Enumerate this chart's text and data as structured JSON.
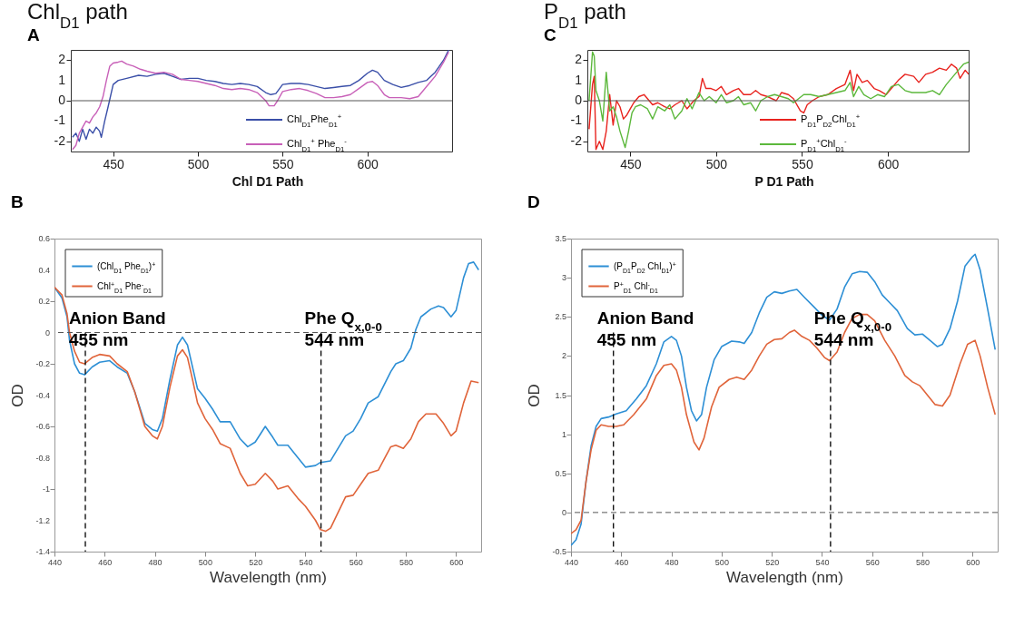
{
  "chart_data": [
    {
      "type": "line",
      "title": "Chl$_{D1}$ path",
      "annotations": [
        "A"
      ],
      "xlim": [
        425,
        650
      ],
      "xticks": [
        450,
        500,
        550,
        600
      ],
      "ylim": [
        -2.5,
        2.5
      ],
      "yticks": [
        -2,
        -1,
        0,
        1,
        2
      ],
      "legend": "bottom right",
      "ref_lines": [
        {
          "axis": "y",
          "value": 0,
          "color": "#555555",
          "line_style": "solid"
        }
      ],
      "series": [
        {
          "name": "Chl$_{D1}$Phe$_{D1}$$^{+}$",
          "color": "#3a4fa8",
          "x": [
            426,
            428,
            430,
            432,
            434,
            436,
            438,
            440,
            442,
            443,
            445,
            447,
            450,
            453,
            458,
            465,
            470,
            475,
            480,
            485,
            490,
            495,
            500,
            505,
            510,
            515,
            520,
            525,
            530,
            535,
            540,
            543,
            546,
            550,
            555,
            560,
            565,
            570,
            575,
            580,
            585,
            590,
            595,
            600,
            603,
            606,
            610,
            615,
            620,
            625,
            630,
            635,
            640,
            645,
            648
          ],
          "values": [
            -1.8,
            -1.6,
            -2.0,
            -1.4,
            -1.9,
            -1.4,
            -1.6,
            -1.3,
            -1.5,
            -1.8,
            -1.0,
            -0.3,
            0.8,
            1.0,
            1.1,
            1.25,
            1.2,
            1.3,
            1.35,
            1.2,
            1.05,
            1.1,
            1.1,
            1.0,
            0.95,
            0.85,
            0.8,
            0.85,
            0.8,
            0.7,
            0.4,
            0.3,
            0.35,
            0.8,
            0.85,
            0.85,
            0.8,
            0.7,
            0.6,
            0.65,
            0.7,
            0.75,
            1.0,
            1.35,
            1.5,
            1.4,
            1.0,
            0.8,
            0.65,
            0.75,
            0.9,
            1.0,
            1.4,
            2.0,
            2.5
          ]
        },
        {
          "name": "Chl$_{D1}$$^{+}$ Phe$_{D1}$$^{-}$",
          "color": "#c860b8",
          "x": [
            426,
            428,
            430,
            432,
            434,
            436,
            438,
            440,
            442,
            444,
            446,
            448,
            450,
            453,
            455,
            458,
            462,
            466,
            470,
            475,
            480,
            485,
            490,
            495,
            500,
            505,
            510,
            515,
            520,
            525,
            530,
            535,
            540,
            542,
            545,
            547,
            550,
            555,
            560,
            565,
            570,
            575,
            580,
            585,
            590,
            595,
            600,
            603,
            606,
            610,
            613,
            620,
            625,
            630,
            635,
            640,
            645,
            648
          ],
          "values": [
            -2.4,
            -2.2,
            -1.6,
            -1.3,
            -1.0,
            -1.1,
            -0.8,
            -0.6,
            -0.3,
            0.2,
            1.0,
            1.7,
            1.85,
            1.9,
            1.95,
            1.8,
            1.7,
            1.55,
            1.45,
            1.35,
            1.4,
            1.3,
            1.05,
            1.0,
            0.95,
            0.85,
            0.75,
            0.6,
            0.55,
            0.6,
            0.55,
            0.4,
            0.0,
            -0.25,
            -0.25,
            0.0,
            0.45,
            0.55,
            0.6,
            0.5,
            0.35,
            0.15,
            0.15,
            0.2,
            0.3,
            0.6,
            0.9,
            0.95,
            0.75,
            0.3,
            0.15,
            0.15,
            0.1,
            0.2,
            0.7,
            1.2,
            1.9,
            2.4
          ]
        }
      ]
    },
    {
      "type": "line",
      "title": "P$_{D1}$ path",
      "annotations": [
        "C"
      ],
      "xlim": [
        425,
        647
      ],
      "xticks": [
        450,
        500,
        550,
        600
      ],
      "ylim": [
        -2.5,
        2.5
      ],
      "yticks": [
        -2,
        -1,
        0,
        1,
        2
      ],
      "legend": "bottom right",
      "ref_lines": [
        {
          "axis": "y",
          "value": 0,
          "color": "#555555",
          "line_style": "solid"
        }
      ],
      "series": [
        {
          "name": "P$_{D1}$P$_{D2}$Chl$_{D1}$$^{+}$",
          "color": "#e8231e",
          "x": [
            426,
            428,
            429,
            430,
            432,
            434,
            436,
            438,
            440,
            442,
            444,
            446,
            448,
            450,
            452,
            455,
            458,
            460,
            463,
            466,
            470,
            473,
            476,
            480,
            483,
            487,
            490,
            492,
            494,
            497,
            500,
            503,
            506,
            510,
            513,
            516,
            520,
            523,
            526,
            530,
            535,
            538,
            542,
            545,
            549,
            551,
            553,
            556,
            560,
            565,
            570,
            575,
            578,
            580,
            582,
            585,
            588,
            592,
            595,
            599,
            602,
            606,
            610,
            615,
            618,
            622,
            626,
            630,
            634,
            637,
            640,
            642,
            645,
            647
          ],
          "values": [
            -1.4,
            0.8,
            1.2,
            -2.4,
            -2.0,
            -2.4,
            -1.5,
            0.3,
            -1.2,
            0.0,
            -0.3,
            -0.9,
            -0.7,
            -0.4,
            -0.1,
            0.2,
            0.3,
            0.1,
            -0.2,
            -0.1,
            -0.3,
            -0.4,
            -0.2,
            0.0,
            -0.4,
            0.0,
            0.2,
            1.1,
            0.6,
            0.6,
            0.5,
            0.7,
            0.3,
            0.5,
            0.6,
            0.3,
            0.3,
            0.5,
            0.3,
            0.2,
            0.0,
            0.4,
            0.3,
            0.1,
            -0.5,
            -0.6,
            -0.2,
            0.0,
            0.2,
            0.3,
            0.6,
            0.8,
            1.5,
            0.5,
            1.3,
            0.9,
            1.0,
            0.6,
            0.5,
            0.3,
            0.6,
            1.0,
            1.3,
            1.2,
            0.9,
            1.3,
            1.4,
            1.6,
            1.5,
            1.8,
            1.6,
            1.1,
            1.5,
            1.3
          ]
        },
        {
          "name": "P$_{D1}$$^{+}$Chl$_{D1}$$^{-}$",
          "color": "#5cb83c",
          "x": [
            426,
            428,
            429,
            430,
            432,
            434,
            436,
            438,
            440,
            442,
            444,
            447,
            449,
            451,
            453,
            456,
            460,
            463,
            466,
            470,
            473,
            476,
            480,
            483,
            486,
            490,
            493,
            496,
            500,
            503,
            506,
            510,
            513,
            516,
            520,
            523,
            526,
            530,
            534,
            538,
            542,
            545,
            548,
            551,
            555,
            560,
            565,
            570,
            575,
            578,
            580,
            583,
            586,
            590,
            594,
            598,
            602,
            606,
            610,
            614,
            618,
            622,
            626,
            630,
            634,
            638,
            641,
            644,
            647
          ],
          "values": [
            0.0,
            2.4,
            2.2,
            0.5,
            0.0,
            -1.0,
            1.4,
            -0.5,
            -0.3,
            -0.8,
            -1.5,
            -2.3,
            -1.5,
            -0.6,
            -0.3,
            -0.2,
            -0.4,
            -0.9,
            -0.3,
            -0.5,
            -0.2,
            -0.9,
            -0.5,
            0.1,
            -0.4,
            0.4,
            0.0,
            0.2,
            -0.1,
            0.3,
            -0.1,
            0.0,
            0.2,
            -0.2,
            -0.1,
            -0.5,
            0.0,
            0.2,
            0.3,
            0.2,
            0.1,
            -0.1,
            0.1,
            0.3,
            0.3,
            0.2,
            0.3,
            0.4,
            0.5,
            0.9,
            0.2,
            0.7,
            0.3,
            0.1,
            0.3,
            0.2,
            0.7,
            0.8,
            0.5,
            0.4,
            0.4,
            0.4,
            0.5,
            0.3,
            0.8,
            1.2,
            1.5,
            1.8,
            1.9
          ]
        }
      ]
    },
    {
      "type": "line",
      "title": "Chl D1 Path",
      "xlabel": "Wavelength (nm)",
      "ylabel": "OD",
      "annotations": [
        "B"
      ],
      "xlim": [
        440,
        610
      ],
      "xticks": [
        440,
        460,
        480,
        500,
        520,
        540,
        560,
        580,
        600
      ],
      "ylim": [
        -1.4,
        0.6
      ],
      "yticks": [
        -1.4,
        -1.2,
        -1,
        -0.8,
        -0.6,
        -0.4,
        -0.2,
        0,
        0.2,
        0.4,
        0.6
      ],
      "legend": "top left",
      "ref_lines": [
        {
          "axis": "y",
          "value": 0,
          "color": "#555555",
          "line_style": "dashed"
        },
        {
          "axis": "x",
          "value": 452.3,
          "label": "Anion Band\n455 nm",
          "color": "#000000",
          "line_style": "dashed"
        },
        {
          "axis": "x",
          "value": 546.2,
          "label": "Phe Q$_{x,0-0}$\n544 nm",
          "color": "#000000",
          "line_style": "dashed"
        }
      ],
      "series": [
        {
          "name": "(Chl$_{D1}$ Phe$_{D1}$)$^{+}$",
          "color": "#2d8fd5",
          "x": [
            440,
            443,
            445,
            446,
            448,
            450,
            452,
            455,
            458,
            462,
            465,
            469,
            472,
            476,
            479,
            481,
            483,
            486,
            489,
            491,
            493,
            495,
            497,
            500,
            503,
            506,
            510,
            514,
            517,
            520,
            524,
            527,
            529,
            533,
            537,
            540,
            544,
            546,
            550,
            553,
            556,
            559,
            562,
            565,
            569,
            574,
            576,
            579,
            582,
            584,
            586,
            590,
            593,
            595,
            598,
            600,
            603,
            605,
            607,
            609
          ],
          "values": [
            0.29,
            0.22,
            0.1,
            -0.05,
            -0.2,
            -0.26,
            -0.27,
            -0.22,
            -0.19,
            -0.18,
            -0.22,
            -0.26,
            -0.38,
            -0.58,
            -0.62,
            -0.63,
            -0.55,
            -0.3,
            -0.08,
            -0.03,
            -0.08,
            -0.22,
            -0.36,
            -0.42,
            -0.49,
            -0.57,
            -0.57,
            -0.68,
            -0.73,
            -0.7,
            -0.6,
            -0.67,
            -0.72,
            -0.72,
            -0.8,
            -0.86,
            -0.85,
            -0.83,
            -0.82,
            -0.74,
            -0.66,
            -0.63,
            -0.55,
            -0.45,
            -0.41,
            -0.25,
            -0.2,
            -0.18,
            -0.1,
            0.02,
            0.1,
            0.15,
            0.17,
            0.16,
            0.1,
            0.14,
            0.35,
            0.44,
            0.45,
            0.4
          ]
        },
        {
          "name": "Chl$^{+}$$_{D1}$ Phe$^{-}$$_{D1}$",
          "color": "#e0643a",
          "x": [
            440,
            443,
            445,
            446,
            448,
            450,
            452,
            455,
            458,
            462,
            465,
            469,
            472,
            476,
            479,
            481,
            483,
            486,
            489,
            491,
            493,
            495,
            497,
            500,
            503,
            506,
            510,
            514,
            517,
            520,
            524,
            527,
            529,
            533,
            537,
            540,
            544,
            546,
            548,
            550,
            553,
            556,
            559,
            562,
            565,
            569,
            574,
            576,
            579,
            582,
            585,
            588,
            592,
            595,
            598,
            600,
            603,
            606,
            609
          ],
          "values": [
            0.29,
            0.24,
            0.12,
            0,
            -0.12,
            -0.19,
            -0.2,
            -0.16,
            -0.14,
            -0.15,
            -0.2,
            -0.25,
            -0.38,
            -0.6,
            -0.66,
            -0.68,
            -0.6,
            -0.35,
            -0.15,
            -0.11,
            -0.16,
            -0.3,
            -0.45,
            -0.55,
            -0.62,
            -0.71,
            -0.74,
            -0.9,
            -0.98,
            -0.97,
            -0.9,
            -0.95,
            -1.0,
            -0.98,
            -1.06,
            -1.11,
            -1.2,
            -1.26,
            -1.27,
            -1.25,
            -1.15,
            -1.05,
            -1.04,
            -0.97,
            -0.9,
            -0.88,
            -0.73,
            -0.72,
            -0.74,
            -0.68,
            -0.57,
            -0.52,
            -0.52,
            -0.58,
            -0.66,
            -0.63,
            -0.45,
            -0.31,
            -0.32
          ]
        }
      ]
    },
    {
      "type": "line",
      "title": "P D1 Path",
      "xlabel": "Wavelength (nm)",
      "ylabel": "OD",
      "annotations": [
        "D"
      ],
      "xlim": [
        440,
        610
      ],
      "xticks": [
        440,
        460,
        480,
        500,
        520,
        540,
        560,
        580,
        600
      ],
      "ylim": [
        -0.5,
        3.5
      ],
      "yticks": [
        -0.5,
        0,
        0.5,
        1,
        1.5,
        2,
        2.5,
        3,
        3.5
      ],
      "legend": "top left",
      "ref_lines": [
        {
          "axis": "y",
          "value": 0,
          "color": "#555555",
          "line_style": "dashed"
        },
        {
          "axis": "x",
          "value": 456.9,
          "label": "Anion Band\n455 nm",
          "color": "#000000",
          "line_style": "dashed"
        },
        {
          "axis": "x",
          "value": 543.4,
          "label": "Phe Q$_{x,0-0}$\n544 nm",
          "color": "#000000",
          "line_style": "dashed"
        }
      ],
      "series": [
        {
          "name": "(P$_{D1}$P$_{D2}$ Chl$_{D1}$)$^{+}$",
          "color": "#2d8fd5",
          "x": [
            440,
            442,
            444,
            446,
            448,
            450,
            452,
            455,
            458,
            462,
            466,
            470,
            474,
            477,
            480,
            482,
            484,
            486,
            488,
            490,
            492,
            494,
            497,
            500,
            504,
            507,
            509,
            512,
            515,
            518,
            521,
            524,
            527,
            530,
            533,
            537,
            540,
            543,
            546,
            549,
            552,
            555,
            558,
            561,
            564,
            567,
            570,
            574,
            577,
            580,
            583,
            586,
            588,
            591,
            594,
            597,
            600,
            601,
            603,
            606,
            609
          ],
          "values": [
            -0.42,
            -0.35,
            -0.15,
            0.4,
            0.85,
            1.1,
            1.2,
            1.22,
            1.26,
            1.3,
            1.45,
            1.62,
            1.9,
            2.18,
            2.25,
            2.2,
            2.0,
            1.6,
            1.3,
            1.17,
            1.25,
            1.6,
            1.95,
            2.12,
            2.19,
            2.18,
            2.16,
            2.3,
            2.55,
            2.75,
            2.82,
            2.8,
            2.83,
            2.85,
            2.75,
            2.62,
            2.52,
            2.46,
            2.6,
            2.88,
            3.05,
            3.08,
            3.07,
            2.95,
            2.78,
            2.68,
            2.58,
            2.35,
            2.27,
            2.28,
            2.2,
            2.12,
            2.15,
            2.35,
            2.7,
            3.15,
            3.27,
            3.3,
            3.1,
            2.6,
            2.08
          ]
        },
        {
          "name": "P$^{+}$$_{D1}$ Chl$^{-}$$_{D1}$",
          "color": "#e0643a",
          "x": [
            440,
            442,
            444,
            446,
            448,
            450,
            452,
            455,
            458,
            461,
            465,
            470,
            474,
            477,
            480,
            482,
            484,
            486,
            489,
            491,
            493,
            496,
            499,
            503,
            506,
            509,
            512,
            515,
            518,
            521,
            524,
            527,
            529,
            532,
            535,
            538,
            541,
            543,
            546,
            549,
            552,
            555,
            558,
            561,
            565,
            569,
            573,
            576,
            579,
            582,
            585,
            588,
            591,
            595,
            598,
            601,
            603,
            606,
            609
          ],
          "values": [
            -0.27,
            -0.22,
            -0.1,
            0.4,
            0.8,
            1.05,
            1.12,
            1.1,
            1.1,
            1.12,
            1.25,
            1.45,
            1.75,
            1.88,
            1.9,
            1.82,
            1.6,
            1.25,
            0.9,
            0.8,
            0.95,
            1.35,
            1.6,
            1.7,
            1.73,
            1.7,
            1.82,
            2.0,
            2.15,
            2.21,
            2.22,
            2.3,
            2.33,
            2.25,
            2.2,
            2.1,
            1.98,
            1.94,
            2.05,
            2.3,
            2.48,
            2.53,
            2.53,
            2.45,
            2.2,
            2.0,
            1.75,
            1.67,
            1.62,
            1.5,
            1.38,
            1.36,
            1.5,
            1.9,
            2.15,
            2.2,
            2.0,
            1.6,
            1.25
          ]
        }
      ]
    }
  ]
}
